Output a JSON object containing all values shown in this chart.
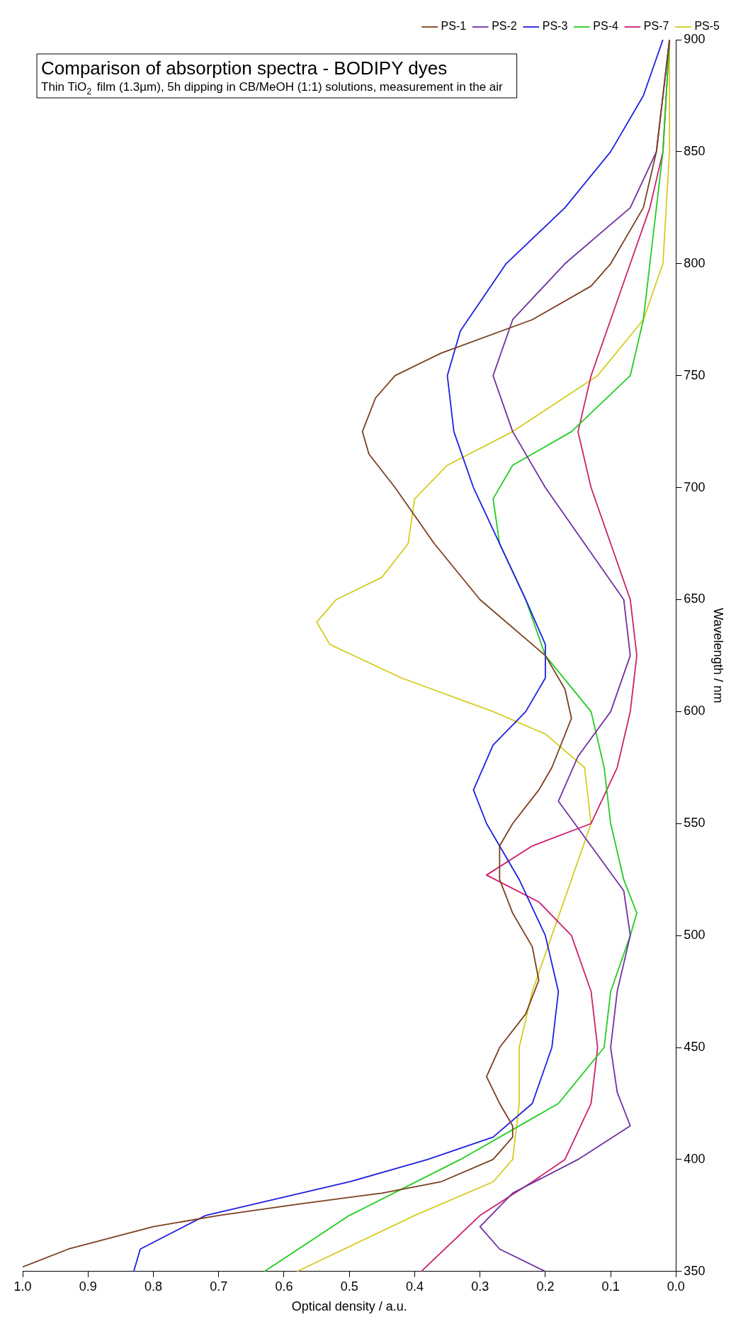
{
  "chart_data": {
    "type": "line",
    "title": "Comparison of absorption spectra - BODIPY dyes",
    "subtitle": "Thin TiO$_{2}$ film (1.3µm), 5h dipping in CB/MeOH (1:1) solutions, measurement in the air",
    "xlabel": "Optical density / a.u.",
    "ylabel": "Wavelength / nm",
    "ylim": [
      350,
      900
    ],
    "yticks": [
      350,
      400,
      450,
      500,
      550,
      600,
      650,
      700,
      750,
      800,
      850,
      900
    ],
    "xlim": [
      1,
      0
    ],
    "xticks": [
      {
        "value": 1,
        "label": "1.0"
      },
      {
        "value": 0.9,
        "label": "0.9"
      },
      {
        "value": 0.8,
        "label": "0.8"
      },
      {
        "value": 0.7,
        "label": "0.7"
      },
      {
        "value": 0.6,
        "label": "0.6"
      },
      {
        "value": 0.5,
        "label": "0.5"
      },
      {
        "value": 0.4,
        "label": "0.4"
      },
      {
        "value": 0.3,
        "label": "0.3"
      },
      {
        "value": 0.2,
        "label": "0.2"
      },
      {
        "value": 0.1,
        "label": "0.1"
      },
      {
        "value": 0,
        "label": "0.0"
      }
    ],
    "legend": "top right",
    "line_style": "solid",
    "series": [
      {
        "name": "PS-1",
        "color": "#7b3f1f",
        "values": [
          352,
          360,
          370,
          375,
          380,
          385,
          390,
          400,
          410,
          415,
          425,
          437,
          450,
          465,
          480,
          495,
          510,
          525,
          540,
          550,
          565,
          575,
          597,
          610,
          625,
          650,
          675,
          700,
          715,
          725,
          740,
          750,
          760,
          775,
          790,
          800,
          825,
          850,
          875,
          900
        ],
        "x": [
          1.0,
          0.93,
          0.8,
          0.7,
          0.58,
          0.45,
          0.36,
          0.28,
          0.25,
          0.25,
          0.27,
          0.29,
          0.27,
          0.23,
          0.21,
          0.22,
          0.25,
          0.27,
          0.27,
          0.25,
          0.21,
          0.19,
          0.16,
          0.17,
          0.2,
          0.3,
          0.37,
          0.43,
          0.47,
          0.48,
          0.46,
          0.43,
          0.36,
          0.22,
          0.13,
          0.1,
          0.05,
          0.03,
          0.02,
          0.01
        ]
      },
      {
        "name": "PS-2",
        "color": "#7030a0",
        "values": [
          350,
          360,
          370,
          385,
          400,
          415,
          430,
          450,
          475,
          500,
          520,
          540,
          560,
          580,
          600,
          625,
          650,
          675,
          700,
          725,
          750,
          775,
          800,
          825,
          850,
          875,
          900
        ],
        "x": [
          0.2,
          0.27,
          0.3,
          0.25,
          0.15,
          0.07,
          0.09,
          0.1,
          0.09,
          0.07,
          0.08,
          0.13,
          0.18,
          0.15,
          0.1,
          0.07,
          0.08,
          0.14,
          0.2,
          0.25,
          0.28,
          0.25,
          0.17,
          0.07,
          0.03,
          0.02,
          0.01
        ]
      },
      {
        "name": "PS-3",
        "color": "#1f1fe0",
        "values": [
          350,
          360,
          375,
          390,
          400,
          410,
          425,
          450,
          475,
          500,
          525,
          550,
          565,
          585,
          600,
          615,
          630,
          650,
          675,
          700,
          725,
          750,
          770,
          800,
          825,
          850,
          875,
          900
        ],
        "x": [
          0.83,
          0.82,
          0.72,
          0.5,
          0.38,
          0.28,
          0.22,
          0.19,
          0.18,
          0.2,
          0.24,
          0.29,
          0.31,
          0.28,
          0.23,
          0.2,
          0.2,
          0.23,
          0.27,
          0.31,
          0.34,
          0.35,
          0.33,
          0.26,
          0.17,
          0.1,
          0.05,
          0.02
        ]
      },
      {
        "name": "PS-4",
        "color": "#22cc22",
        "values": [
          350,
          375,
          400,
          425,
          450,
          475,
          500,
          510,
          525,
          550,
          575,
          600,
          625,
          650,
          675,
          695,
          710,
          725,
          750,
          775,
          800,
          850,
          900
        ],
        "x": [
          0.63,
          0.5,
          0.33,
          0.18,
          0.11,
          0.1,
          0.07,
          0.06,
          0.08,
          0.1,
          0.11,
          0.13,
          0.2,
          0.23,
          0.27,
          0.28,
          0.25,
          0.16,
          0.07,
          0.05,
          0.04,
          0.02,
          0.01
        ]
      },
      {
        "name": "PS-7",
        "color": "#cc1f6f",
        "values": [
          350,
          375,
          390,
          400,
          425,
          450,
          475,
          500,
          515,
          527,
          540,
          550,
          575,
          600,
          625,
          650,
          675,
          700,
          725,
          750,
          775,
          800,
          825,
          850,
          900
        ],
        "x": [
          0.39,
          0.3,
          0.22,
          0.17,
          0.13,
          0.12,
          0.13,
          0.16,
          0.21,
          0.29,
          0.22,
          0.13,
          0.09,
          0.07,
          0.06,
          0.07,
          0.1,
          0.13,
          0.15,
          0.13,
          0.1,
          0.07,
          0.04,
          0.02,
          0.01
        ]
      },
      {
        "name": "PS-5",
        "color": "#d4cc22",
        "values": [
          350,
          375,
          390,
          400,
          425,
          450,
          475,
          500,
          525,
          550,
          575,
          590,
          600,
          615,
          630,
          640,
          650,
          660,
          675,
          695,
          710,
          725,
          750,
          775,
          800,
          850,
          900
        ],
        "x": [
          0.58,
          0.4,
          0.28,
          0.25,
          0.24,
          0.24,
          0.22,
          0.19,
          0.16,
          0.13,
          0.14,
          0.2,
          0.28,
          0.42,
          0.53,
          0.55,
          0.52,
          0.45,
          0.41,
          0.4,
          0.35,
          0.25,
          0.12,
          0.05,
          0.02,
          0.01,
          0.01
        ]
      }
    ]
  }
}
